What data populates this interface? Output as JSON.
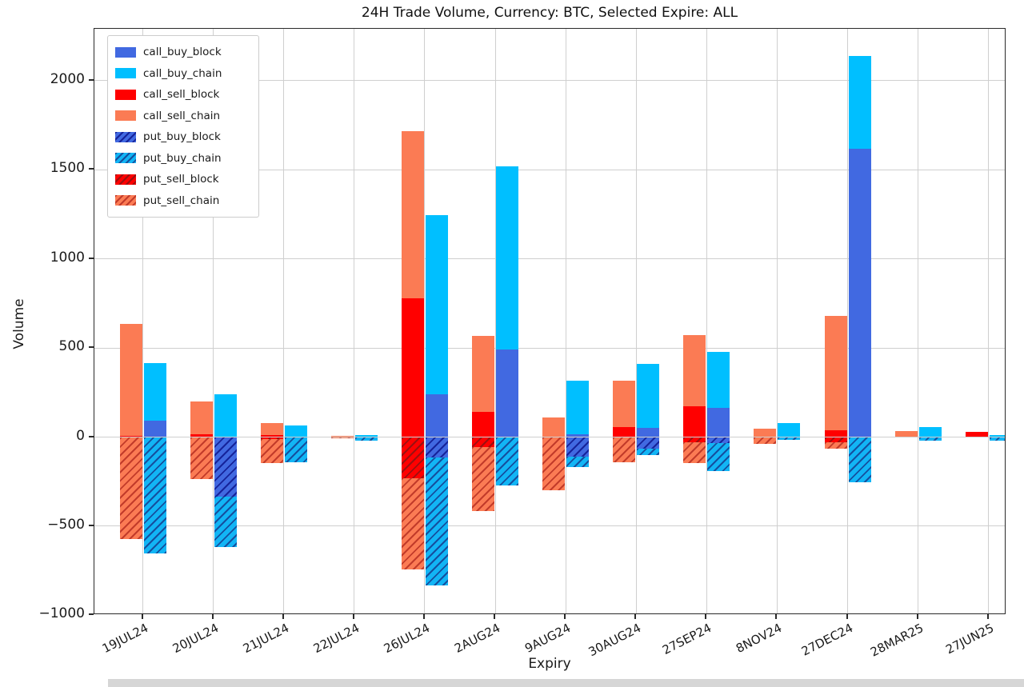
{
  "title": "24H Trade Volume, Currency: BTC, Selected Expire: ALL",
  "axes": {
    "xlabel": "Expiry",
    "ylabel": "Volume",
    "grid": true,
    "legend_position": "upper left",
    "yticks": [
      {
        "v": -1000,
        "label": "−1000"
      },
      {
        "v": -500,
        "label": "−500"
      },
      {
        "v": 0,
        "label": "0"
      },
      {
        "v": 500,
        "label": "500"
      },
      {
        "v": 1000,
        "label": "1000"
      },
      {
        "v": 1500,
        "label": "1500"
      },
      {
        "v": 2000,
        "label": "2000"
      }
    ]
  },
  "chart_data": {
    "type": "bar",
    "stacked": true,
    "title": "24H Trade Volume, Currency: BTC, Selected Expire: ALL",
    "xlabel": "Expiry",
    "ylabel": "Volume",
    "ylim": [
      -1000,
      2290
    ],
    "categories": [
      "19JUL24",
      "20JUL24",
      "21JUL24",
      "22JUL24",
      "26JUL24",
      "2AUG24",
      "9AUG24",
      "30AUG24",
      "27SEP24",
      "8NOV24",
      "27DEC24",
      "28MAR25",
      "27JUN25"
    ],
    "series": [
      {
        "name": "call_buy_block",
        "bar": "buy",
        "sign": "pos",
        "color": "#4169e1",
        "hatch": false,
        "hatch_color": null,
        "values": [
          90,
          0,
          0,
          0,
          240,
          490,
          15,
          50,
          165,
          0,
          1620,
          0,
          0
        ]
      },
      {
        "name": "call_buy_chain",
        "bar": "buy",
        "sign": "pos",
        "color": "#00bfff",
        "hatch": false,
        "hatch_color": null,
        "values": [
          325,
          240,
          67,
          10,
          1005,
          1030,
          300,
          362,
          315,
          80,
          520,
          55,
          13
        ]
      },
      {
        "name": "call_sell_block",
        "bar": "sell",
        "sign": "pos",
        "color": "#ff0000",
        "hatch": false,
        "hatch_color": null,
        "values": [
          5,
          15,
          12,
          0,
          780,
          143,
          0,
          58,
          175,
          0,
          36,
          0,
          30
        ]
      },
      {
        "name": "call_sell_chain",
        "bar": "sell",
        "sign": "pos",
        "color": "#fb7b54",
        "hatch": false,
        "hatch_color": null,
        "values": [
          628,
          185,
          68,
          5,
          935,
          425,
          112,
          260,
          398,
          45,
          645,
          35,
          0
        ]
      },
      {
        "name": "put_buy_block",
        "bar": "buy",
        "sign": "neg",
        "color": "#4169e1",
        "hatch": true,
        "hatch_color": "#16249b",
        "values": [
          0,
          -335,
          0,
          0,
          -116,
          0,
          -112,
          -65,
          -35,
          0,
          0,
          0,
          0
        ]
      },
      {
        "name": "put_buy_chain",
        "bar": "buy",
        "sign": "neg",
        "color": "#12b5f5",
        "hatch": true,
        "hatch_color": "#15509f",
        "values": [
          -655,
          -282,
          -143,
          -18,
          -717,
          -270,
          -58,
          -38,
          -157,
          -15,
          -255,
          -18,
          -20
        ]
      },
      {
        "name": "put_sell_block",
        "bar": "sell",
        "sign": "neg",
        "color": "#ff0000",
        "hatch": true,
        "hatch_color": "#9c1010",
        "values": [
          0,
          0,
          -10,
          0,
          -233,
          -58,
          0,
          0,
          -30,
          0,
          -30,
          0,
          0
        ]
      },
      {
        "name": "put_sell_chain",
        "bar": "sell",
        "sign": "neg",
        "color": "#fb7b54",
        "hatch": true,
        "hatch_color": "#c23b2a",
        "values": [
          -572,
          -236,
          -138,
          -5,
          -510,
          -355,
          -300,
          -140,
          -118,
          -40,
          -35,
          0,
          0
        ]
      }
    ],
    "legend": [
      "call_buy_block",
      "call_buy_chain",
      "call_sell_block",
      "call_sell_chain",
      "put_buy_block",
      "put_buy_chain",
      "put_sell_block",
      "put_sell_chain"
    ]
  }
}
